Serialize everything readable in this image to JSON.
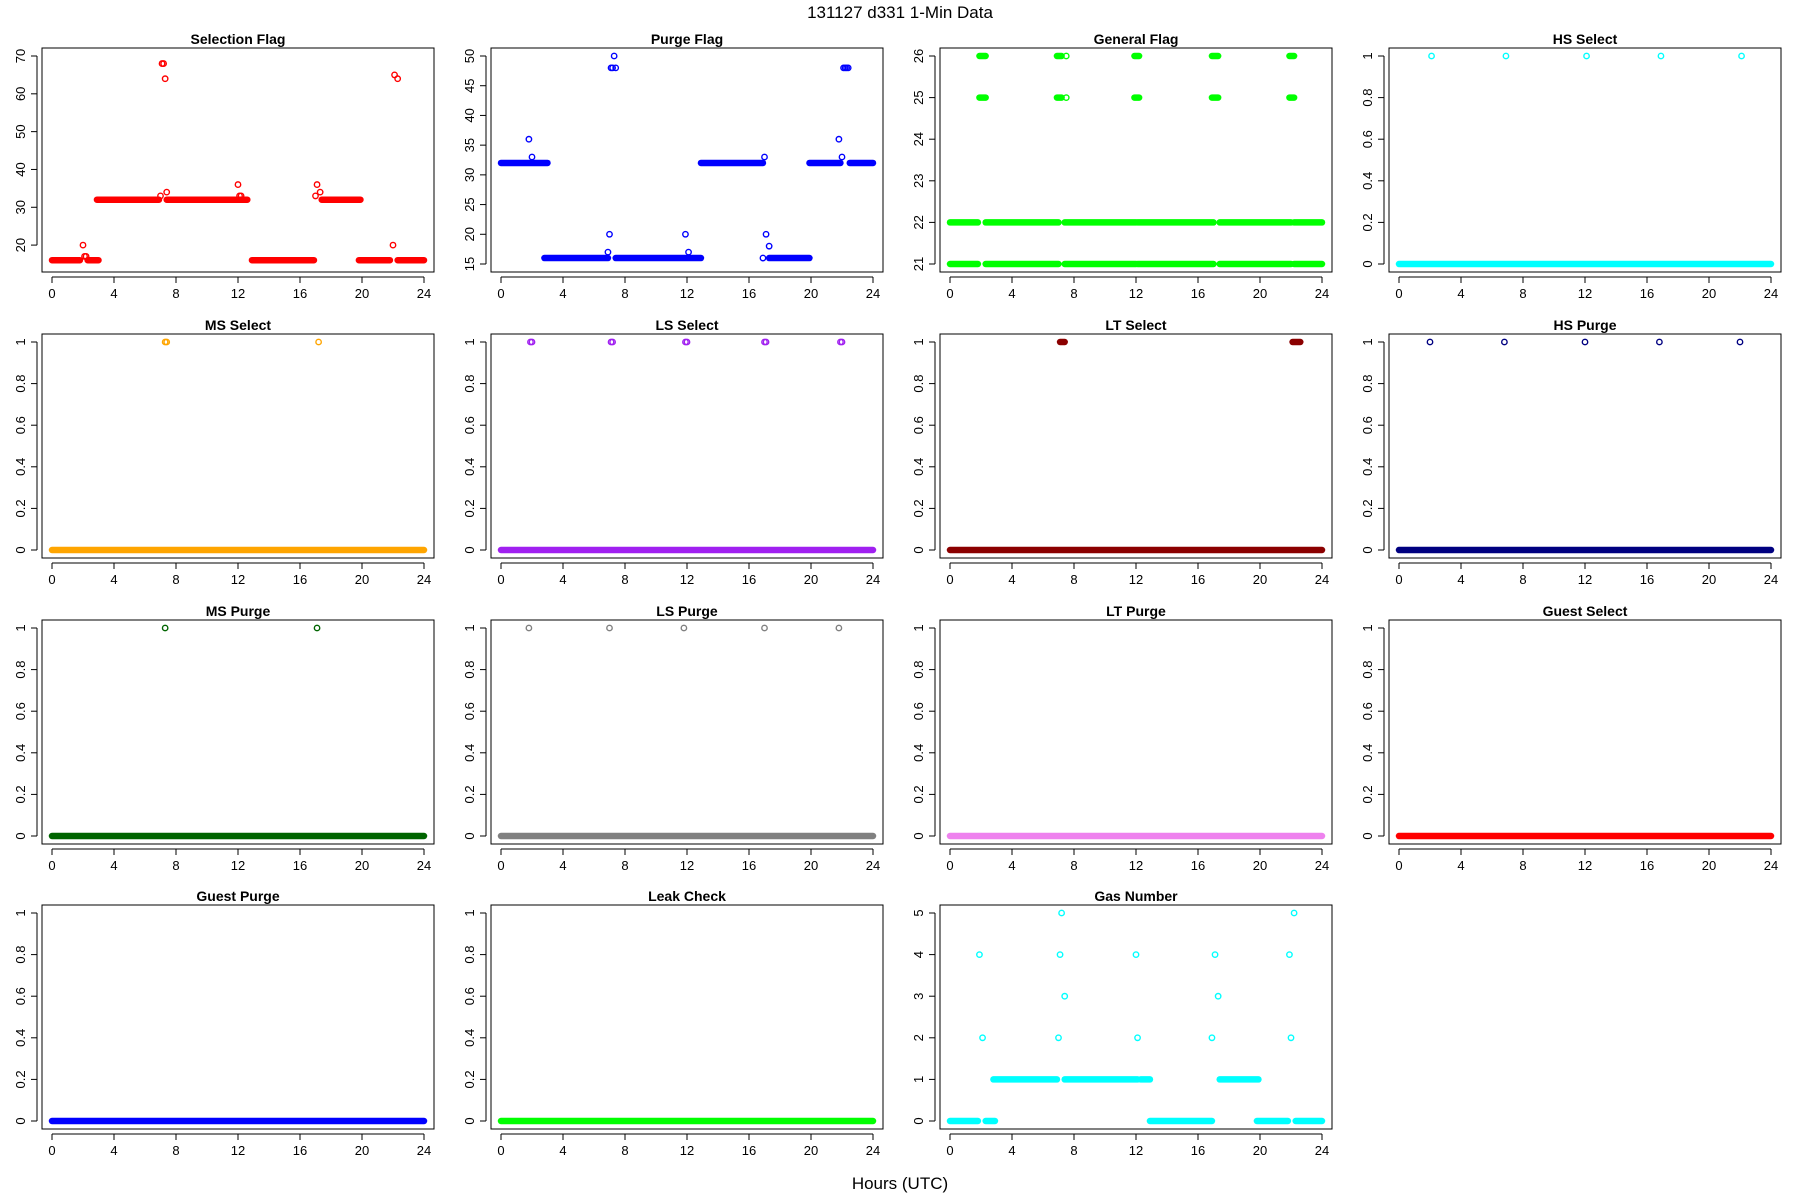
{
  "figure": {
    "title": "131127   d331   1-Min Data",
    "xlabel": "Hours (UTC)"
  },
  "chart_data": [
    {
      "type": "scatter",
      "title": "Selection Flag",
      "color": "#ff0000",
      "xlim": [
        0,
        24
      ],
      "ylim": [
        15,
        70
      ],
      "xticks": [
        0,
        4,
        8,
        12,
        16,
        20,
        24
      ],
      "yticks": [
        20,
        30,
        40,
        50,
        60,
        70
      ],
      "segments": [
        [
          0,
          1.8,
          16
        ],
        [
          2.3,
          3,
          16
        ],
        [
          2.9,
          6.9,
          32
        ],
        [
          7.4,
          12.6,
          32
        ],
        [
          12.9,
          16.9,
          16
        ],
        [
          17.4,
          19.9,
          32
        ],
        [
          19.8,
          21.8,
          16
        ],
        [
          22.3,
          24,
          16
        ]
      ],
      "points": [
        [
          2,
          20
        ],
        [
          2.1,
          17
        ],
        [
          2.2,
          17
        ],
        [
          7,
          33
        ],
        [
          7.1,
          68
        ],
        [
          7.2,
          68
        ],
        [
          7.3,
          64
        ],
        [
          7.4,
          34
        ],
        [
          12,
          36
        ],
        [
          12.1,
          33
        ],
        [
          12.2,
          33
        ],
        [
          17,
          33
        ],
        [
          17.1,
          36
        ],
        [
          17.3,
          34
        ],
        [
          22,
          20
        ],
        [
          22.1,
          65
        ],
        [
          22.3,
          64
        ]
      ]
    },
    {
      "type": "scatter",
      "title": "Purge Flag",
      "color": "#0000ff",
      "xlim": [
        0,
        24
      ],
      "ylim": [
        15,
        50
      ],
      "xticks": [
        0,
        4,
        8,
        12,
        16,
        20,
        24
      ],
      "yticks": [
        15,
        20,
        25,
        30,
        35,
        40,
        45,
        50
      ],
      "segments": [
        [
          0,
          3,
          32
        ],
        [
          2.8,
          6.9,
          16
        ],
        [
          7.4,
          12.9,
          16
        ],
        [
          12.9,
          16.9,
          32
        ],
        [
          17.3,
          19.9,
          16
        ],
        [
          19.9,
          21.9,
          32
        ],
        [
          22.5,
          24,
          32
        ]
      ],
      "points": [
        [
          1.8,
          36
        ],
        [
          2,
          33
        ],
        [
          6.9,
          17
        ],
        [
          7,
          20
        ],
        [
          7.1,
          48
        ],
        [
          7.2,
          48
        ],
        [
          7.3,
          50
        ],
        [
          7.4,
          48
        ],
        [
          11.9,
          20
        ],
        [
          12.1,
          17
        ],
        [
          16.9,
          16
        ],
        [
          17,
          33
        ],
        [
          17.1,
          20
        ],
        [
          17.3,
          18
        ],
        [
          21.8,
          36
        ],
        [
          22,
          33
        ],
        [
          22.1,
          48
        ],
        [
          22.2,
          48
        ],
        [
          22.3,
          48
        ],
        [
          22.4,
          48
        ]
      ]
    },
    {
      "type": "scatter",
      "title": "General Flag",
      "color": "#00ff00",
      "xlim": [
        0,
        24
      ],
      "ylim": [
        21,
        26
      ],
      "xticks": [
        0,
        4,
        8,
        12,
        16,
        20,
        24
      ],
      "yticks": [
        21,
        22,
        23,
        24,
        25,
        26
      ],
      "segments": [
        [
          0,
          1.8,
          21
        ],
        [
          2.3,
          7,
          21
        ],
        [
          7.4,
          12,
          21
        ],
        [
          12.1,
          17,
          21
        ],
        [
          17.4,
          22,
          21
        ],
        [
          22.2,
          24,
          21
        ],
        [
          0,
          1.8,
          22
        ],
        [
          2.3,
          7,
          22
        ],
        [
          7.4,
          12,
          22
        ],
        [
          12.1,
          17,
          22
        ],
        [
          17.4,
          22,
          22
        ],
        [
          22.2,
          24,
          22
        ],
        [
          1.9,
          2.3,
          25
        ],
        [
          6.9,
          7.2,
          25
        ],
        [
          11.9,
          12.2,
          25
        ],
        [
          16.9,
          17.3,
          25
        ],
        [
          21.9,
          22.2,
          25
        ],
        [
          1.9,
          2.3,
          26
        ],
        [
          6.9,
          7.2,
          26
        ],
        [
          11.9,
          12.2,
          26
        ],
        [
          16.9,
          17.3,
          26
        ],
        [
          21.9,
          22.2,
          26
        ]
      ],
      "points": [
        [
          7.5,
          25
        ],
        [
          7.5,
          26
        ]
      ]
    },
    {
      "type": "scatter",
      "title": "HS Select",
      "color": "#00ffff",
      "xlim": [
        0,
        24
      ],
      "ylim": [
        0,
        1
      ],
      "xticks": [
        0,
        4,
        8,
        12,
        16,
        20,
        24
      ],
      "yticks": [
        0.0,
        0.2,
        0.4,
        0.6,
        0.8,
        1.0
      ],
      "segments": [
        [
          0,
          24,
          0
        ]
      ],
      "points": [
        [
          2.1,
          1
        ],
        [
          6.9,
          1
        ],
        [
          12.1,
          1
        ],
        [
          16.9,
          1
        ],
        [
          22.1,
          1
        ]
      ]
    },
    {
      "type": "scatter",
      "title": "MS Select",
      "color": "#ffa500",
      "xlim": [
        0,
        24
      ],
      "ylim": [
        0,
        1
      ],
      "xticks": [
        0,
        4,
        8,
        12,
        16,
        20,
        24
      ],
      "yticks": [
        0.0,
        0.2,
        0.4,
        0.6,
        0.8,
        1.0
      ],
      "segments": [
        [
          0,
          24,
          0
        ]
      ],
      "points": [
        [
          7.3,
          1
        ],
        [
          7.4,
          1
        ],
        [
          17.2,
          1
        ]
      ]
    },
    {
      "type": "scatter",
      "title": "LS Select",
      "color": "#a020f0",
      "xlim": [
        0,
        24
      ],
      "ylim": [
        0,
        1
      ],
      "xticks": [
        0,
        4,
        8,
        12,
        16,
        20,
        24
      ],
      "yticks": [
        0.0,
        0.2,
        0.4,
        0.6,
        0.8,
        1.0
      ],
      "segments": [
        [
          0,
          24,
          0
        ]
      ],
      "points": [
        [
          1.9,
          1
        ],
        [
          2,
          1
        ],
        [
          7.1,
          1
        ],
        [
          7.2,
          1
        ],
        [
          11.9,
          1
        ],
        [
          12,
          1
        ],
        [
          17,
          1
        ],
        [
          17.1,
          1
        ],
        [
          21.9,
          1
        ],
        [
          22,
          1
        ]
      ]
    },
    {
      "type": "scatter",
      "title": "LT Select",
      "color": "#8b0000",
      "xlim": [
        0,
        24
      ],
      "ylim": [
        0,
        1
      ],
      "xticks": [
        0,
        4,
        8,
        12,
        16,
        20,
        24
      ],
      "yticks": [
        0.0,
        0.2,
        0.4,
        0.6,
        0.8,
        1.0
      ],
      "segments": [
        [
          0,
          24,
          0
        ],
        [
          7.1,
          7.4,
          1
        ],
        [
          22.1,
          22.6,
          1
        ]
      ],
      "points": []
    },
    {
      "type": "scatter",
      "title": "HS Purge",
      "color": "#000080",
      "xlim": [
        0,
        24
      ],
      "ylim": [
        0,
        1
      ],
      "xticks": [
        0,
        4,
        8,
        12,
        16,
        20,
        24
      ],
      "yticks": [
        0.0,
        0.2,
        0.4,
        0.6,
        0.8,
        1.0
      ],
      "segments": [
        [
          0,
          24,
          0
        ]
      ],
      "points": [
        [
          2,
          1
        ],
        [
          6.8,
          1
        ],
        [
          12,
          1
        ],
        [
          16.8,
          1
        ],
        [
          22,
          1
        ]
      ]
    },
    {
      "type": "scatter",
      "title": "MS Purge",
      "color": "#006400",
      "xlim": [
        0,
        24
      ],
      "ylim": [
        0,
        1
      ],
      "xticks": [
        0,
        4,
        8,
        12,
        16,
        20,
        24
      ],
      "yticks": [
        0.0,
        0.2,
        0.4,
        0.6,
        0.8,
        1.0
      ],
      "segments": [
        [
          0,
          24,
          0
        ]
      ],
      "points": [
        [
          7.3,
          1
        ],
        [
          17.1,
          1
        ]
      ]
    },
    {
      "type": "scatter",
      "title": "LS Purge",
      "color": "#808080",
      "xlim": [
        0,
        24
      ],
      "ylim": [
        0,
        1
      ],
      "xticks": [
        0,
        4,
        8,
        12,
        16,
        20,
        24
      ],
      "yticks": [
        0.0,
        0.2,
        0.4,
        0.6,
        0.8,
        1.0
      ],
      "segments": [
        [
          0,
          24,
          0
        ]
      ],
      "points": [
        [
          1.8,
          1
        ],
        [
          7,
          1
        ],
        [
          11.8,
          1
        ],
        [
          17,
          1
        ],
        [
          21.8,
          1
        ]
      ]
    },
    {
      "type": "scatter",
      "title": "LT Purge",
      "color": "#ee82ee",
      "xlim": [
        0,
        24
      ],
      "ylim": [
        0,
        1
      ],
      "xticks": [
        0,
        4,
        8,
        12,
        16,
        20,
        24
      ],
      "yticks": [
        0.0,
        0.2,
        0.4,
        0.6,
        0.8,
        1.0
      ],
      "segments": [
        [
          0,
          24,
          0
        ]
      ],
      "points": []
    },
    {
      "type": "scatter",
      "title": "Guest Select",
      "color": "#ff0000",
      "xlim": [
        0,
        24
      ],
      "ylim": [
        0,
        1
      ],
      "xticks": [
        0,
        4,
        8,
        12,
        16,
        20,
        24
      ],
      "yticks": [
        0.0,
        0.2,
        0.4,
        0.6,
        0.8,
        1.0
      ],
      "segments": [
        [
          0,
          24,
          0
        ]
      ],
      "points": []
    },
    {
      "type": "scatter",
      "title": "Guest Purge",
      "color": "#0000ff",
      "xlim": [
        0,
        24
      ],
      "ylim": [
        0,
        1
      ],
      "xticks": [
        0,
        4,
        8,
        12,
        16,
        20,
        24
      ],
      "yticks": [
        0.0,
        0.2,
        0.4,
        0.6,
        0.8,
        1.0
      ],
      "segments": [
        [
          0,
          24,
          0
        ]
      ],
      "points": []
    },
    {
      "type": "scatter",
      "title": "Leak Check",
      "color": "#00ff00",
      "xlim": [
        0,
        24
      ],
      "ylim": [
        0,
        1
      ],
      "xticks": [
        0,
        4,
        8,
        12,
        16,
        20,
        24
      ],
      "yticks": [
        0.0,
        0.2,
        0.4,
        0.6,
        0.8,
        1.0
      ],
      "segments": [
        [
          0,
          24,
          0
        ]
      ],
      "points": []
    },
    {
      "type": "scatter",
      "title": "Gas Number",
      "color": "#00ffff",
      "xlim": [
        0,
        24
      ],
      "ylim": [
        0,
        5
      ],
      "xticks": [
        0,
        4,
        8,
        12,
        16,
        20,
        24
      ],
      "yticks": [
        0,
        1,
        2,
        3,
        4,
        5
      ],
      "segments": [
        [
          0,
          1.8,
          0
        ],
        [
          2.3,
          2.9,
          0
        ],
        [
          2.8,
          6.9,
          1
        ],
        [
          7.4,
          12.1,
          1
        ],
        [
          12.3,
          12.9,
          1
        ],
        [
          12.9,
          16.9,
          0
        ],
        [
          17.4,
          19.9,
          1
        ],
        [
          19.8,
          21.8,
          0
        ],
        [
          22.3,
          24,
          0
        ]
      ],
      "points": [
        [
          1.9,
          4
        ],
        [
          2.1,
          2
        ],
        [
          7,
          2
        ],
        [
          7.1,
          4
        ],
        [
          7.2,
          5
        ],
        [
          7.4,
          3
        ],
        [
          12,
          4
        ],
        [
          12.1,
          2
        ],
        [
          16.9,
          2
        ],
        [
          17.1,
          4
        ],
        [
          17.3,
          3
        ],
        [
          21.9,
          4
        ],
        [
          22,
          2
        ],
        [
          22.2,
          5
        ]
      ]
    }
  ]
}
